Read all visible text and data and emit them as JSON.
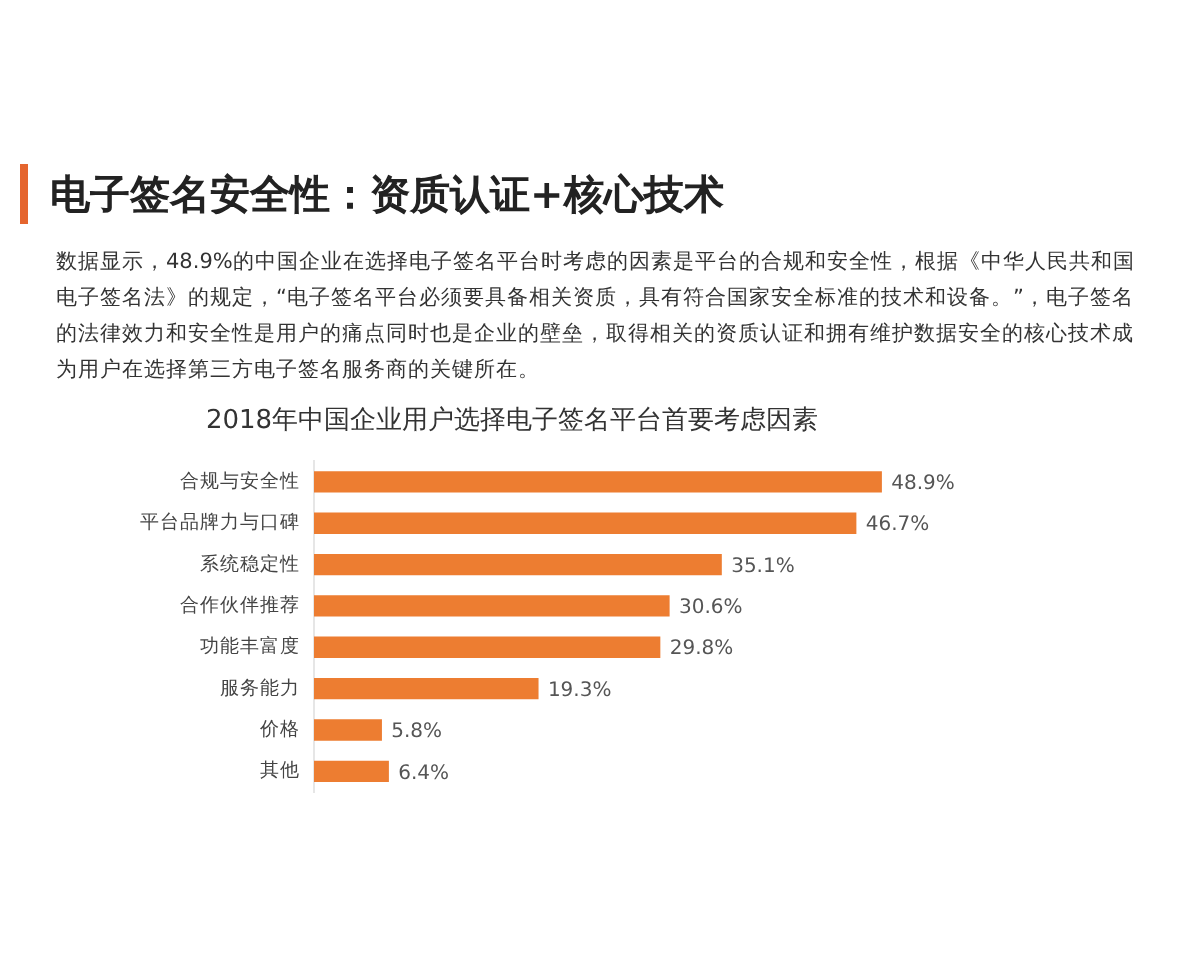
{
  "chart_data": {
    "type": "bar",
    "orientation": "horizontal",
    "tick_labels": "y",
    "title": "电子签名安全性：资质认证+核心技术",
    "subtitle": "2018年中国企业用户选择电子签名平台首要考虑因素",
    "annotations": [
      "数据显示，48.9%的中国企业在选择电子签名平台时考虑的因素是平台的合规和安全性，根据《中华人民共和国电子签名法》的规定，“电子签名平台必须要具备相关资质，具有符合国家安全标准的技术和设备。”，电子签名的法律效力和安全性是用户的痛点同时也是企业的壁垒，取得相关的资质认证和拥有维护数据安全的核心技术成为用户在选择第三方电子签名服务商的关键所在。"
    ],
    "categories": [
      "合规与安全性",
      "平台品牌力与口碑",
      "系统稳定性",
      "合作伙伴推荐",
      "功能丰富度",
      "服务能力",
      "价格",
      "其他"
    ],
    "values": [
      48.9,
      46.7,
      35.1,
      30.6,
      29.8,
      19.3,
      5.8,
      6.4
    ],
    "value_labels": [
      "48.9%",
      "46.7%",
      "35.1%",
      "30.6%",
      "29.8%",
      "19.3%",
      "5.8%",
      "6.4%"
    ],
    "color": "#ed7d31"
  }
}
